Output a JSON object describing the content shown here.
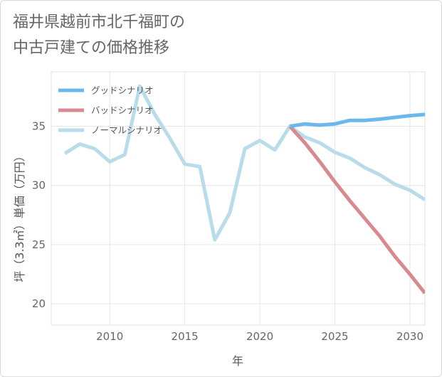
{
  "title_lines": [
    "福井県越前市北千福町の",
    "中古戸建ての価格推移"
  ],
  "chart_data": {
    "type": "line",
    "xlabel": "年",
    "ylabel": "坪（3.3㎡）単価（万円）",
    "xlim": [
      2006.1,
      2031
    ],
    "ylim": [
      18.2,
      39.6
    ],
    "xticks": [
      2010,
      2015,
      2020,
      2025,
      2030
    ],
    "yticks": [
      20,
      25,
      30,
      35
    ],
    "grid": true,
    "legend_position": "top-left",
    "series": [
      {
        "name": "グッドシナリオ",
        "color": "#6cb8ec",
        "x": [
          2022,
          2023,
          2024,
          2025,
          2026,
          2027,
          2028,
          2029,
          2030,
          2031
        ],
        "values": [
          35.0,
          35.2,
          35.1,
          35.2,
          35.5,
          35.5,
          35.6,
          35.75,
          35.9,
          36.0
        ]
      },
      {
        "name": "バッドシナリオ",
        "color": "#d98a90",
        "x": [
          2022,
          2023,
          2024,
          2025,
          2026,
          2027,
          2028,
          2029,
          2030,
          2031
        ],
        "values": [
          35.0,
          33.6,
          32.0,
          30.3,
          28.7,
          27.2,
          25.7,
          24.0,
          22.5,
          20.9
        ]
      },
      {
        "name": "ノーマルシナリオ",
        "color": "#b9dcea",
        "x": [
          2007,
          2008,
          2009,
          2010,
          2011,
          2012,
          2013,
          2014,
          2015,
          2016,
          2017,
          2018,
          2019,
          2020,
          2021,
          2022,
          2023,
          2024,
          2025,
          2026,
          2027,
          2028,
          2029,
          2030,
          2031
        ],
        "values": [
          32.7,
          33.5,
          33.1,
          32.0,
          32.6,
          38.4,
          36.0,
          34.0,
          31.8,
          31.6,
          25.4,
          27.7,
          33.1,
          33.8,
          33.0,
          35.0,
          34.1,
          33.6,
          32.8,
          32.3,
          31.5,
          30.9,
          30.1,
          29.6,
          28.8
        ]
      }
    ]
  }
}
